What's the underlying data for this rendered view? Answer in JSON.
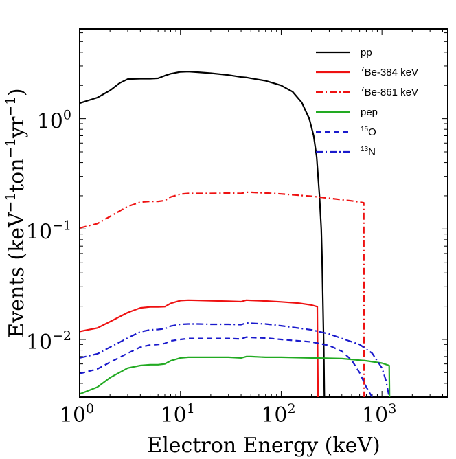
{
  "chart_data": {
    "type": "line",
    "title": "",
    "xlabel": "Electron Energy (keV)",
    "ylabel": {
      "parts": [
        {
          "text": "Events (keV"
        },
        {
          "text": "−1",
          "sup": true
        },
        {
          "text": "ton"
        },
        {
          "text": "−1",
          "sup": true
        },
        {
          "text": "yr"
        },
        {
          "text": "−1",
          "sup": true
        },
        {
          "text": ")"
        }
      ]
    },
    "x_scale": "log",
    "y_scale": "log",
    "xlim": [
      1,
      4500
    ],
    "ylim": [
      0.003,
      6.5
    ],
    "grid": false,
    "legend_position": "top-right",
    "x_ticks": [
      {
        "value": 1,
        "base": "10",
        "exp": "0"
      },
      {
        "value": 10,
        "base": "10",
        "exp": "1"
      },
      {
        "value": 100,
        "base": "10",
        "exp": "2"
      },
      {
        "value": 1000,
        "base": "10",
        "exp": "3"
      }
    ],
    "y_ticks": [
      {
        "value": 1,
        "base": "10",
        "exp": "0"
      },
      {
        "value": 0.1,
        "base": "10",
        "exp": "−1"
      },
      {
        "value": 0.01,
        "base": "10",
        "exp": "−2"
      }
    ],
    "series": [
      {
        "name": "pp",
        "legend_sup": "",
        "color": "#000000",
        "dash": "solid",
        "points": [
          [
            1,
            1.38
          ],
          [
            1.5,
            1.55
          ],
          [
            2,
            1.8
          ],
          [
            2.5,
            2.1
          ],
          [
            3,
            2.28
          ],
          [
            4,
            2.3
          ],
          [
            5,
            2.3
          ],
          [
            6,
            2.32
          ],
          [
            7,
            2.45
          ],
          [
            8,
            2.55
          ],
          [
            10,
            2.65
          ],
          [
            12,
            2.67
          ],
          [
            15,
            2.63
          ],
          [
            20,
            2.58
          ],
          [
            30,
            2.48
          ],
          [
            40,
            2.38
          ],
          [
            45,
            2.36
          ],
          [
            50,
            2.32
          ],
          [
            70,
            2.2
          ],
          [
            100,
            2.0
          ],
          [
            130,
            1.75
          ],
          [
            160,
            1.4
          ],
          [
            190,
            1.0
          ],
          [
            210,
            0.7
          ],
          [
            225,
            0.45
          ],
          [
            240,
            0.2
          ],
          [
            250,
            0.1
          ],
          [
            255,
            0.05
          ],
          [
            260,
            0.02
          ],
          [
            265,
            0.008
          ],
          [
            268,
            0.003
          ]
        ]
      },
      {
        "name": "Be-384 keV",
        "legend_sup": "7",
        "color": "#ee1111",
        "dash": "solid",
        "points": [
          [
            1,
            0.0118
          ],
          [
            1.5,
            0.0127
          ],
          [
            2,
            0.0145
          ],
          [
            3,
            0.0175
          ],
          [
            4,
            0.0193
          ],
          [
            5,
            0.0197
          ],
          [
            6,
            0.0197
          ],
          [
            7,
            0.0198
          ],
          [
            8,
            0.0212
          ],
          [
            10,
            0.0225
          ],
          [
            12,
            0.0227
          ],
          [
            15,
            0.0226
          ],
          [
            20,
            0.0224
          ],
          [
            30,
            0.0222
          ],
          [
            40,
            0.022
          ],
          [
            45,
            0.0227
          ],
          [
            50,
            0.0226
          ],
          [
            70,
            0.0223
          ],
          [
            100,
            0.0219
          ],
          [
            150,
            0.0213
          ],
          [
            200,
            0.0205
          ],
          [
            228,
            0.0198
          ],
          [
            230,
            0.008
          ],
          [
            232,
            0.003
          ]
        ]
      },
      {
        "name": "Be-861 keV",
        "legend_sup": "7",
        "color": "#ee1111",
        "dash": "10,4,2,4",
        "points": [
          [
            1,
            0.102
          ],
          [
            1.5,
            0.112
          ],
          [
            2,
            0.13
          ],
          [
            3,
            0.16
          ],
          [
            4,
            0.175
          ],
          [
            5,
            0.178
          ],
          [
            6,
            0.178
          ],
          [
            7,
            0.181
          ],
          [
            8,
            0.195
          ],
          [
            10,
            0.207
          ],
          [
            12,
            0.21
          ],
          [
            15,
            0.21
          ],
          [
            20,
            0.21
          ],
          [
            30,
            0.212
          ],
          [
            40,
            0.21
          ],
          [
            45,
            0.215
          ],
          [
            50,
            0.215
          ],
          [
            70,
            0.212
          ],
          [
            100,
            0.208
          ],
          [
            200,
            0.198
          ],
          [
            300,
            0.19
          ],
          [
            500,
            0.18
          ],
          [
            660,
            0.173
          ],
          [
            665,
            0.003
          ]
        ]
      },
      {
        "name": "pep",
        "legend_sup": "",
        "color": "#22aa22",
        "dash": "solid",
        "points": [
          [
            1,
            0.0032
          ],
          [
            1.5,
            0.0037
          ],
          [
            2,
            0.0045
          ],
          [
            3,
            0.0055
          ],
          [
            4,
            0.0058
          ],
          [
            5,
            0.0059
          ],
          [
            6,
            0.0059
          ],
          [
            7,
            0.006
          ],
          [
            8,
            0.0064
          ],
          [
            10,
            0.0068
          ],
          [
            12,
            0.0069
          ],
          [
            15,
            0.0069
          ],
          [
            20,
            0.0069
          ],
          [
            30,
            0.0069
          ],
          [
            40,
            0.0068
          ],
          [
            45,
            0.007
          ],
          [
            50,
            0.007
          ],
          [
            70,
            0.0069
          ],
          [
            100,
            0.0069
          ],
          [
            200,
            0.0068
          ],
          [
            400,
            0.0067
          ],
          [
            700,
            0.0064
          ],
          [
            1000,
            0.0061
          ],
          [
            1180,
            0.0058
          ],
          [
            1190,
            0.003
          ]
        ]
      },
      {
        "name": "O",
        "legend_sup": "15",
        "color": "#1a1acc",
        "dash": "8,5",
        "points": [
          [
            1,
            0.0049
          ],
          [
            1.5,
            0.0054
          ],
          [
            2,
            0.0062
          ],
          [
            3,
            0.0075
          ],
          [
            4,
            0.0085
          ],
          [
            5,
            0.0089
          ],
          [
            6,
            0.009
          ],
          [
            7,
            0.0092
          ],
          [
            8,
            0.0097
          ],
          [
            10,
            0.01
          ],
          [
            12,
            0.0102
          ],
          [
            15,
            0.0102
          ],
          [
            20,
            0.0102
          ],
          [
            30,
            0.0102
          ],
          [
            40,
            0.0101
          ],
          [
            45,
            0.0105
          ],
          [
            50,
            0.0104
          ],
          [
            70,
            0.0103
          ],
          [
            100,
            0.01
          ],
          [
            200,
            0.0095
          ],
          [
            300,
            0.0088
          ],
          [
            400,
            0.0078
          ],
          [
            500,
            0.0065
          ],
          [
            600,
            0.005
          ],
          [
            700,
            0.0037
          ],
          [
            800,
            0.003
          ]
        ]
      },
      {
        "name": "N",
        "legend_sup": "13",
        "color": "#1a1acc",
        "dash": "10,4,2,4",
        "points": [
          [
            1,
            0.0068
          ],
          [
            1.5,
            0.0074
          ],
          [
            2,
            0.0085
          ],
          [
            3,
            0.0103
          ],
          [
            4,
            0.0117
          ],
          [
            5,
            0.0122
          ],
          [
            6,
            0.0123
          ],
          [
            7,
            0.0125
          ],
          [
            8,
            0.0132
          ],
          [
            10,
            0.0137
          ],
          [
            12,
            0.0138
          ],
          [
            15,
            0.0138
          ],
          [
            20,
            0.0137
          ],
          [
            30,
            0.0137
          ],
          [
            40,
            0.0136
          ],
          [
            45,
            0.0141
          ],
          [
            50,
            0.014
          ],
          [
            70,
            0.0138
          ],
          [
            100,
            0.0133
          ],
          [
            200,
            0.0122
          ],
          [
            300,
            0.0112
          ],
          [
            400,
            0.0102
          ],
          [
            600,
            0.009
          ],
          [
            800,
            0.0075
          ],
          [
            1000,
            0.0055
          ],
          [
            1100,
            0.0042
          ],
          [
            1180,
            0.003
          ]
        ]
      }
    ]
  }
}
